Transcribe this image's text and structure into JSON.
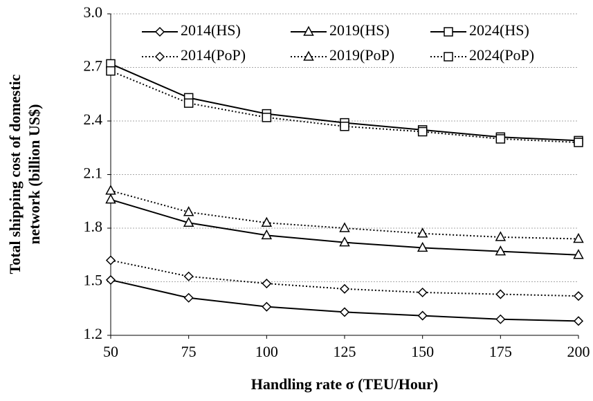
{
  "chart_data": {
    "type": "line",
    "xlabel": "Handling rate σ (TEU/Hour)",
    "ylabel": [
      "Total shipping cost of domestic",
      "network (billion US$)"
    ],
    "x": [
      50,
      75,
      100,
      125,
      150,
      175,
      200
    ],
    "xlim": [
      50,
      200
    ],
    "xticks": [
      50,
      75,
      100,
      125,
      150,
      175,
      200
    ],
    "ylim": [
      1.2,
      3
    ],
    "yticks": [
      1.2,
      1.5,
      1.8,
      2.1,
      2.4,
      2.7,
      {
        "value": 3,
        "label": "3.0"
      }
    ],
    "grid": true,
    "legend": "top",
    "series": [
      {
        "name": "2014(HS)",
        "color": "#000000",
        "marker": "diamond",
        "dash": "solid",
        "values": [
          1.51,
          1.41,
          1.36,
          1.33,
          1.31,
          1.29,
          1.28
        ]
      },
      {
        "name": "2019(HS)",
        "color": "#000000",
        "marker": "triangle",
        "dash": "solid",
        "values": [
          1.96,
          1.83,
          1.76,
          1.72,
          1.69,
          1.67,
          1.65
        ]
      },
      {
        "name": "2024(HS)",
        "color": "#000000",
        "marker": "square",
        "dash": "solid",
        "values": [
          2.72,
          2.53,
          2.44,
          2.39,
          2.35,
          2.31,
          2.29
        ]
      },
      {
        "name": "2014(PoP)",
        "color": "#000000",
        "marker": "diamond",
        "dash": "dotted",
        "values": [
          1.62,
          1.53,
          1.49,
          1.46,
          1.44,
          1.43,
          1.42
        ]
      },
      {
        "name": "2019(PoP)",
        "color": "#000000",
        "marker": "triangle",
        "dash": "dotted",
        "values": [
          2.01,
          1.89,
          1.83,
          1.8,
          1.77,
          1.75,
          1.74
        ]
      },
      {
        "name": "2024(PoP)",
        "color": "#000000",
        "marker": "square",
        "dash": "dotted",
        "values": [
          2.68,
          2.5,
          2.42,
          2.37,
          2.34,
          2.3,
          2.28
        ]
      }
    ]
  }
}
